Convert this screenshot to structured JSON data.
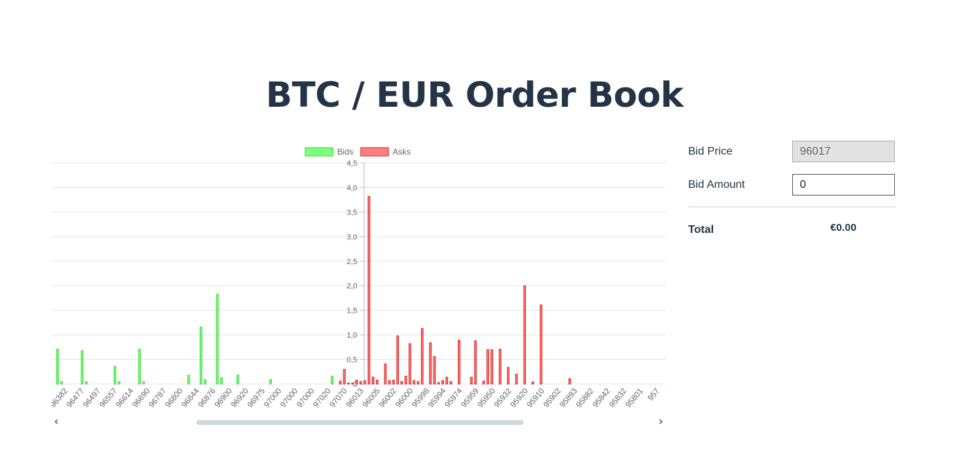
{
  "page": {
    "title": "BTC / EUR Order Book"
  },
  "form": {
    "bid_price_label": "Bid Price",
    "bid_price_value": "96017",
    "bid_amount_label": "Bid Amount",
    "bid_amount_value": "0",
    "total_label": "Total",
    "total_value": "€0.00"
  },
  "scrollbar": {
    "left_glyph": "‹",
    "right_glyph": "›"
  },
  "colors": {
    "bid_fill": "#7fff7f",
    "bid_stroke": "#33dd33",
    "ask_fill": "#ff8080",
    "ask_stroke": "#dd2222",
    "grid": "#e5e5e5",
    "axis": "#bbbbbb",
    "tick_text": "#666666"
  },
  "chart_data": {
    "type": "bar",
    "legend": [
      "Bids",
      "Asks"
    ],
    "legend_placement": "top-center",
    "ylim": [
      0,
      4.5
    ],
    "y_ticks": [
      "0",
      "0,5",
      "1,0",
      "1,5",
      "2,0",
      "2,5",
      "3,0",
      "3,5",
      "4,0",
      "4,5"
    ],
    "grid": true,
    "x_tick_labels": [
      "96382",
      "96477",
      "96497",
      "96557",
      "96614",
      "96690",
      "96787",
      "96800",
      "96844",
      "96876",
      "96900",
      "96920",
      "96975",
      "97000",
      "97000",
      "97000",
      "97020",
      "97070",
      "96013",
      "96005",
      "96002",
      "96000",
      "95998",
      "95994",
      "95974",
      "95959",
      "95950",
      "95932",
      "95920",
      "95910",
      "95902",
      "95893",
      "95882",
      "95842",
      "95832",
      "95801",
      "957"
    ],
    "series": [
      {
        "name": "Bids",
        "values": [
          0.71,
          0.05,
          0,
          0,
          0,
          0,
          0.68,
          0.05,
          0,
          0,
          0,
          0,
          0,
          0,
          0.36,
          0.05,
          0,
          0,
          0,
          0,
          0.71,
          0.05,
          0,
          0,
          0,
          0,
          0,
          0,
          0,
          0,
          0,
          0,
          0.18,
          0,
          0,
          1.16,
          0.09,
          0,
          0,
          1.83,
          0.13,
          0,
          0,
          0,
          0.18,
          0,
          0,
          0,
          0,
          0,
          0,
          0,
          0.09,
          0,
          0,
          0,
          0,
          0,
          0,
          0,
          0,
          0,
          0,
          0,
          0,
          0,
          0,
          0.16,
          0,
          0,
          0,
          0,
          0,
          0,
          0,
          0,
          0,
          0,
          0,
          0,
          0,
          0,
          0,
          0,
          0,
          0,
          0,
          0,
          0,
          0,
          0,
          0,
          0,
          0,
          0,
          0,
          0,
          0,
          0,
          0,
          0,
          0,
          0,
          0,
          0,
          0,
          0,
          0,
          0,
          0,
          0,
          0,
          0,
          0,
          0,
          0,
          0,
          0,
          0,
          0,
          0,
          0,
          0,
          0,
          0,
          0,
          0,
          0,
          0,
          0,
          0,
          0,
          0,
          0,
          0,
          0,
          0,
          0,
          0,
          0,
          0,
          0,
          0,
          0,
          0,
          0,
          0,
          0,
          0,
          0
        ]
      },
      {
        "name": "Asks",
        "values": [
          0,
          0,
          0,
          0,
          0,
          0,
          0,
          0,
          0,
          0,
          0,
          0,
          0,
          0,
          0,
          0,
          0,
          0,
          0,
          0,
          0,
          0,
          0,
          0,
          0,
          0,
          0,
          0,
          0,
          0,
          0,
          0,
          0,
          0,
          0,
          0,
          0,
          0,
          0,
          0,
          0,
          0,
          0,
          0,
          0,
          0,
          0,
          0,
          0,
          0,
          0,
          0,
          0,
          0,
          0,
          0,
          0,
          0,
          0,
          0,
          0,
          0,
          0,
          0,
          0,
          0,
          0,
          0,
          0,
          0.06,
          0.3,
          0.02,
          0.02,
          0.08,
          0.05,
          0.07,
          3.82,
          0.14,
          0.08,
          0,
          0.41,
          0.07,
          0.08,
          0.98,
          0.05,
          0.16,
          0.82,
          0.07,
          0.05,
          1.13,
          0,
          0.84,
          0.56,
          0.03,
          0.07,
          0.14,
          0.05,
          0,
          0.89,
          0,
          0,
          0.14,
          0.88,
          0,
          0.06,
          0.7,
          0.7,
          0,
          0.71,
          0,
          0.34,
          0,
          0.2,
          0,
          2.0,
          0,
          0.04,
          0,
          1.61,
          0,
          0,
          0,
          0,
          0,
          0,
          0.11,
          0,
          0,
          0,
          0,
          0,
          0,
          0,
          0,
          0,
          0,
          0,
          0,
          0,
          0,
          0,
          0,
          0,
          0,
          0,
          0,
          0,
          0,
          0,
          0,
          0,
          0,
          0,
          0,
          0,
          0,
          0,
          0,
          0,
          0
        ]
      }
    ]
  }
}
